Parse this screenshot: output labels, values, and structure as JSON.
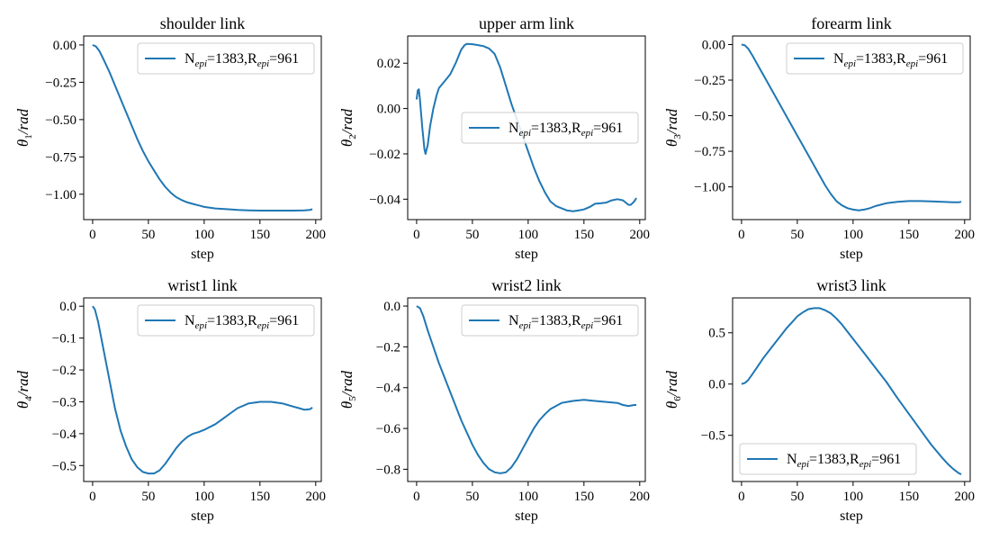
{
  "colors": {
    "line": "#1f77b4",
    "axis": "#000000",
    "legend_border": "#cccccc"
  },
  "chart_data": [
    {
      "type": "line",
      "title": "shoulder link",
      "xlabel": "step",
      "ylabel_symbol": "θ",
      "ylabel_index": "1",
      "ylabel_unit": "/rad",
      "xlim": [
        -8,
        205
      ],
      "ylim": [
        -1.17,
        0.06
      ],
      "xticks": [
        "0",
        "50",
        "100",
        "150",
        "200"
      ],
      "yticks": [
        "0.00",
        "−0.25",
        "−0.50",
        "−0.75",
        "−1.00"
      ],
      "ytick_values": [
        0,
        -0.25,
        -0.5,
        -0.75,
        -1.0
      ],
      "legend": {
        "main1": "N",
        "sub1": "epi",
        "mid": "=1383,R",
        "sub2": "epi",
        "tail": "=961",
        "position": "upper right"
      },
      "series": [
        {
          "x": [
            0,
            3,
            6,
            10,
            15,
            20,
            25,
            30,
            35,
            40,
            45,
            50,
            55,
            60,
            65,
            70,
            75,
            80,
            85,
            90,
            95,
            100,
            105,
            110,
            120,
            130,
            140,
            150,
            160,
            170,
            180,
            190,
            195,
            197
          ],
          "y": [
            0.0,
            -0.01,
            -0.04,
            -0.1,
            -0.18,
            -0.27,
            -0.36,
            -0.45,
            -0.54,
            -0.63,
            -0.71,
            -0.78,
            -0.84,
            -0.9,
            -0.95,
            -0.99,
            -1.02,
            -1.04,
            -1.055,
            -1.065,
            -1.075,
            -1.085,
            -1.09,
            -1.095,
            -1.1,
            -1.105,
            -1.108,
            -1.11,
            -1.11,
            -1.11,
            -1.11,
            -1.108,
            -1.105,
            -1.1
          ]
        }
      ]
    },
    {
      "type": "line",
      "title": "upper arm link",
      "xlabel": "step",
      "ylabel_symbol": "θ",
      "ylabel_index": "2",
      "ylabel_unit": "/rad",
      "xlim": [
        -8,
        205
      ],
      "ylim": [
        -0.049,
        0.032
      ],
      "xticks": [
        "0",
        "50",
        "100",
        "150",
        "200"
      ],
      "yticks": [
        "0.02",
        "0.00",
        "−0.02",
        "−0.04"
      ],
      "ytick_values": [
        0.02,
        0.0,
        -0.02,
        -0.04
      ],
      "legend": {
        "main1": "N",
        "sub1": "epi",
        "mid": "=1383,R",
        "sub2": "epi",
        "tail": "=961",
        "position": "center right"
      },
      "series": [
        {
          "x": [
            0,
            1,
            2,
            3,
            5,
            7,
            8,
            10,
            12,
            15,
            18,
            20,
            25,
            30,
            35,
            40,
            43,
            45,
            50,
            55,
            60,
            65,
            70,
            75,
            80,
            85,
            90,
            95,
            100,
            105,
            110,
            115,
            120,
            125,
            130,
            135,
            140,
            145,
            150,
            155,
            160,
            165,
            170,
            175,
            180,
            185,
            190,
            192,
            195,
            197
          ],
          "y": [
            0.004,
            0.008,
            0.0085,
            0.004,
            -0.008,
            -0.018,
            -0.02,
            -0.016,
            -0.008,
            0.0,
            0.006,
            0.009,
            0.012,
            0.015,
            0.02,
            0.026,
            0.028,
            0.0285,
            0.0284,
            0.028,
            0.0275,
            0.0265,
            0.024,
            0.018,
            0.01,
            0.002,
            -0.005,
            -0.012,
            -0.019,
            -0.026,
            -0.032,
            -0.037,
            -0.041,
            -0.043,
            -0.044,
            -0.045,
            -0.0453,
            -0.045,
            -0.0445,
            -0.0435,
            -0.042,
            -0.0418,
            -0.0415,
            -0.0405,
            -0.04,
            -0.0405,
            -0.0425,
            -0.0425,
            -0.041,
            -0.0395
          ]
        }
      ]
    },
    {
      "type": "line",
      "title": "forearm link",
      "xlabel": "step",
      "ylabel_symbol": "θ",
      "ylabel_index": "3",
      "ylabel_unit": "/rad",
      "xlim": [
        -8,
        205
      ],
      "ylim": [
        -1.23,
        0.06
      ],
      "xticks": [
        "0",
        "50",
        "100",
        "150",
        "200"
      ],
      "yticks": [
        "0.00",
        "−0.25",
        "−0.50",
        "−0.75",
        "−1.00"
      ],
      "ytick_values": [
        0,
        -0.25,
        -0.5,
        -0.75,
        -1.0
      ],
      "legend": {
        "main1": "N",
        "sub1": "epi",
        "mid": "=1383,R",
        "sub2": "epi",
        "tail": "=961",
        "position": "upper right"
      },
      "series": [
        {
          "x": [
            0,
            3,
            6,
            10,
            15,
            20,
            30,
            40,
            50,
            60,
            70,
            75,
            80,
            85,
            90,
            95,
            100,
            105,
            110,
            115,
            120,
            125,
            130,
            140,
            150,
            160,
            170,
            180,
            190,
            195,
            197
          ],
          "y": [
            0.0,
            -0.005,
            -0.03,
            -0.08,
            -0.15,
            -0.22,
            -0.36,
            -0.5,
            -0.64,
            -0.78,
            -0.92,
            -0.99,
            -1.05,
            -1.1,
            -1.13,
            -1.15,
            -1.16,
            -1.165,
            -1.16,
            -1.15,
            -1.135,
            -1.125,
            -1.115,
            -1.105,
            -1.1,
            -1.1,
            -1.102,
            -1.105,
            -1.108,
            -1.108,
            -1.105
          ]
        }
      ]
    },
    {
      "type": "line",
      "title": "wrist1 link",
      "xlabel": "step",
      "ylabel_symbol": "θ",
      "ylabel_index": "4",
      "ylabel_unit": "/rad",
      "xlim": [
        -8,
        205
      ],
      "ylim": [
        -0.55,
        0.026
      ],
      "xticks": [
        "0",
        "50",
        "100",
        "150",
        "200"
      ],
      "yticks": [
        "0.0",
        "−0.1",
        "−0.2",
        "−0.3",
        "−0.4",
        "−0.5"
      ],
      "ytick_values": [
        0,
        -0.1,
        -0.2,
        -0.3,
        -0.4,
        -0.5
      ],
      "legend": {
        "main1": "N",
        "sub1": "epi",
        "mid": "=1383,R",
        "sub2": "epi",
        "tail": "=961",
        "position": "upper right"
      },
      "series": [
        {
          "x": [
            0,
            2,
            5,
            10,
            15,
            20,
            25,
            30,
            35,
            40,
            45,
            50,
            55,
            60,
            65,
            70,
            75,
            80,
            85,
            90,
            95,
            100,
            110,
            120,
            130,
            140,
            150,
            160,
            170,
            175,
            180,
            185,
            190,
            195,
            197
          ],
          "y": [
            0.0,
            -0.01,
            -0.05,
            -0.14,
            -0.23,
            -0.32,
            -0.39,
            -0.44,
            -0.48,
            -0.505,
            -0.52,
            -0.525,
            -0.525,
            -0.515,
            -0.495,
            -0.47,
            -0.445,
            -0.425,
            -0.41,
            -0.4,
            -0.395,
            -0.388,
            -0.37,
            -0.345,
            -0.32,
            -0.305,
            -0.3,
            -0.3,
            -0.305,
            -0.31,
            -0.315,
            -0.32,
            -0.325,
            -0.323,
            -0.318
          ]
        }
      ]
    },
    {
      "type": "line",
      "title": "wrist2 link",
      "xlabel": "step",
      "ylabel_symbol": "θ",
      "ylabel_index": "5",
      "ylabel_unit": "/rad",
      "xlim": [
        -8,
        205
      ],
      "ylim": [
        -0.86,
        0.04
      ],
      "xticks": [
        "0",
        "50",
        "100",
        "150",
        "200"
      ],
      "yticks": [
        "0.0",
        "−0.2",
        "−0.4",
        "−0.6",
        "−0.8"
      ],
      "ytick_values": [
        0,
        -0.2,
        -0.4,
        -0.6,
        -0.8
      ],
      "legend": {
        "main1": "N",
        "sub1": "epi",
        "mid": "=1383,R",
        "sub2": "epi",
        "tail": "=961",
        "position": "upper right"
      },
      "series": [
        {
          "x": [
            0,
            3,
            6,
            10,
            15,
            20,
            30,
            40,
            50,
            55,
            60,
            65,
            70,
            75,
            80,
            85,
            90,
            95,
            100,
            105,
            110,
            115,
            120,
            125,
            130,
            140,
            150,
            160,
            170,
            180,
            185,
            190,
            195,
            197
          ],
          "y": [
            0.0,
            -0.01,
            -0.05,
            -0.12,
            -0.2,
            -0.28,
            -0.42,
            -0.56,
            -0.68,
            -0.73,
            -0.77,
            -0.8,
            -0.815,
            -0.82,
            -0.815,
            -0.79,
            -0.75,
            -0.7,
            -0.65,
            -0.6,
            -0.56,
            -0.53,
            -0.505,
            -0.49,
            -0.475,
            -0.465,
            -0.46,
            -0.465,
            -0.47,
            -0.475,
            -0.485,
            -0.49,
            -0.485,
            -0.485
          ]
        }
      ]
    },
    {
      "type": "line",
      "title": "wrist3 link",
      "xlabel": "step",
      "ylabel_symbol": "θ",
      "ylabel_index": "6",
      "ylabel_unit": "/rad",
      "xlim": [
        -8,
        205
      ],
      "ylim": [
        -0.95,
        0.84
      ],
      "xticks": [
        "0",
        "50",
        "100",
        "150",
        "200"
      ],
      "yticks": [
        "0.5",
        "0.0",
        "−0.5"
      ],
      "ytick_values": [
        0.5,
        0.0,
        -0.5
      ],
      "legend": {
        "main1": "N",
        "sub1": "epi",
        "mid": "=1383,R",
        "sub2": "epi",
        "tail": "=961",
        "position": "lower left"
      },
      "series": [
        {
          "x": [
            0,
            3,
            6,
            10,
            15,
            20,
            25,
            30,
            35,
            40,
            45,
            50,
            55,
            60,
            65,
            70,
            75,
            80,
            85,
            90,
            100,
            110,
            120,
            130,
            140,
            150,
            160,
            170,
            180,
            185,
            190,
            195,
            197
          ],
          "y": [
            0.0,
            0.01,
            0.04,
            0.1,
            0.18,
            0.26,
            0.33,
            0.4,
            0.47,
            0.54,
            0.6,
            0.66,
            0.7,
            0.73,
            0.74,
            0.74,
            0.72,
            0.69,
            0.64,
            0.58,
            0.44,
            0.3,
            0.16,
            0.02,
            -0.14,
            -0.29,
            -0.44,
            -0.59,
            -0.72,
            -0.78,
            -0.83,
            -0.87,
            -0.88
          ]
        }
      ]
    }
  ]
}
